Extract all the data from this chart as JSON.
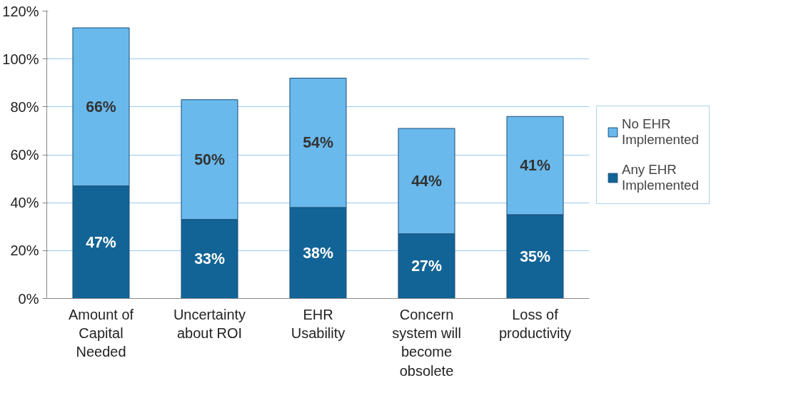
{
  "chart_data": {
    "type": "bar",
    "stacked": true,
    "categories": [
      "Amount of Capital Needed",
      "Uncertainty about ROI",
      "EHR Usability",
      "Concern system will become obsolete",
      "Loss of productivity"
    ],
    "series": [
      {
        "name": "Any EHR Implemented",
        "color": "#136496",
        "values": [
          47,
          33,
          38,
          27,
          35
        ],
        "value_labels": [
          "47%",
          "33%",
          "38%",
          "27%",
          "35%"
        ]
      },
      {
        "name": "No EHR Implemented",
        "color": "#69b9ec",
        "values": [
          66,
          50,
          54,
          44,
          41
        ],
        "value_labels": [
          "66%",
          "50%",
          "54%",
          "44%",
          "41%"
        ]
      }
    ],
    "ylim": [
      0,
      120
    ],
    "yticks": [
      {
        "value": 0,
        "label": "0%"
      },
      {
        "value": 20,
        "label": "20%"
      },
      {
        "value": 40,
        "label": "40%"
      },
      {
        "value": 60,
        "label": "60%"
      },
      {
        "value": 80,
        "label": "80%"
      },
      {
        "value": 100,
        "label": "100%"
      },
      {
        "value": 120,
        "label": "120%"
      }
    ],
    "grid": "y",
    "legend": "right"
  }
}
